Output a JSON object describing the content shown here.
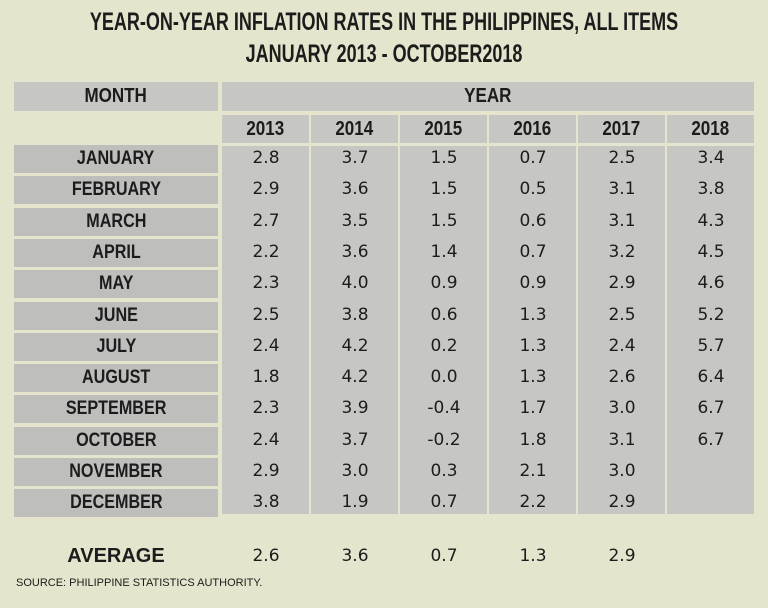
{
  "chart_data": {
    "type": "table",
    "title": [
      "YEAR-ON-YEAR INFLATION RATES IN THE PHILIPPINES, ALL ITEMS",
      "JANUARY 2013 - OCTOBER2018"
    ],
    "month_header": "MONTH",
    "year_header": "YEAR",
    "years": [
      "2013",
      "2014",
      "2015",
      "2016",
      "2017",
      "2018"
    ],
    "rows": [
      {
        "month": "JANUARY",
        "values": [
          "2.8",
          "3.7",
          "1.5",
          "0.7",
          "2.5",
          "3.4"
        ]
      },
      {
        "month": "FEBRUARY",
        "values": [
          "2.9",
          "3.6",
          "1.5",
          "0.5",
          "3.1",
          "3.8"
        ]
      },
      {
        "month": "MARCH",
        "values": [
          "2.7",
          "3.5",
          "1.5",
          "0.6",
          "3.1",
          "4.3"
        ]
      },
      {
        "month": "APRIL",
        "values": [
          "2.2",
          "3.6",
          "1.4",
          "0.7",
          "3.2",
          "4.5"
        ]
      },
      {
        "month": "MAY",
        "values": [
          "2.3",
          "4.0",
          "0.9",
          "0.9",
          "2.9",
          "4.6"
        ]
      },
      {
        "month": "JUNE",
        "values": [
          "2.5",
          "3.8",
          "0.6",
          "1.3",
          "2.5",
          "5.2"
        ]
      },
      {
        "month": "JULY",
        "values": [
          "2.4",
          "4.2",
          "0.2",
          "1.3",
          "2.4",
          "5.7"
        ]
      },
      {
        "month": "AUGUST",
        "values": [
          "1.8",
          "4.2",
          "0.0",
          "1.3",
          "2.6",
          "6.4"
        ]
      },
      {
        "month": "SEPTEMBER",
        "values": [
          "2.3",
          "3.9",
          "-0.4",
          "1.7",
          "3.0",
          "6.7"
        ]
      },
      {
        "month": "OCTOBER",
        "values": [
          "2.4",
          "3.7",
          "-0.2",
          "1.8",
          "3.1",
          "6.7"
        ]
      },
      {
        "month": "NOVEMBER",
        "values": [
          "2.9",
          "3.0",
          "0.3",
          "2.1",
          "3.0",
          ""
        ]
      },
      {
        "month": "DECEMBER",
        "values": [
          "3.8",
          "1.9",
          "0.7",
          "2.2",
          "2.9",
          ""
        ]
      }
    ],
    "average": {
      "label": "AVERAGE",
      "values": [
        "2.6",
        "3.6",
        "0.7",
        "1.3",
        "2.9",
        ""
      ]
    }
  },
  "source": "SOURCE: PHILIPPINE STATISTICS AUTHORITY."
}
